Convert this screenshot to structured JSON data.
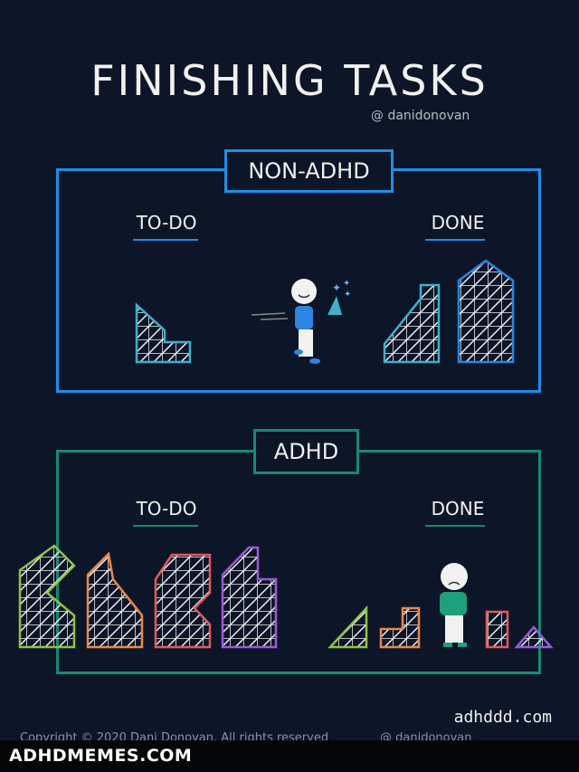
{
  "title": "FINISHING TASKS",
  "credit": "@ danidonovan",
  "panels": [
    {
      "label": "NON-ADHD",
      "todo": "TO-DO",
      "done": "DONE",
      "color": "#1f8fe8"
    },
    {
      "label": "ADHD",
      "todo": "TO-DO",
      "done": "DONE",
      "color": "#178a70"
    }
  ],
  "footer": {
    "site": "adhddd.com",
    "copyright": "Copyright © 2020 Dani Donovan. All rights reserved",
    "handle": "@ danidonovan"
  },
  "watermark": "ADHDMEMES.COM",
  "colors": {
    "background": "#0d1528",
    "green": "#8bc34a",
    "orange": "#e8884a",
    "red": "#e05a5a",
    "purple": "#9b59d6",
    "teal": "#3fb0c8",
    "blue": "#2a86e0"
  }
}
